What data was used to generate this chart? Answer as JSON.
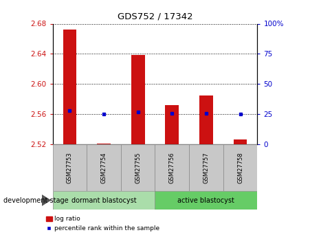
{
  "title": "GDS752 / 17342",
  "samples": [
    "GSM27753",
    "GSM27754",
    "GSM27755",
    "GSM27756",
    "GSM27757",
    "GSM27758"
  ],
  "log_ratio": [
    2.672,
    2.521,
    2.639,
    2.572,
    2.585,
    2.527
  ],
  "log_ratio_base": 2.52,
  "percentile_rank": [
    28,
    25,
    27,
    26,
    26,
    25
  ],
  "ylim_left": [
    2.52,
    2.68
  ],
  "ylim_right": [
    0,
    100
  ],
  "yticks_left": [
    2.52,
    2.56,
    2.6,
    2.64,
    2.68
  ],
  "yticks_right": [
    0,
    25,
    50,
    75,
    100
  ],
  "bar_color": "#cc1111",
  "square_color": "#0000cc",
  "grid_color": "#000000",
  "bg_color": "#ffffff",
  "plot_bg": "#ffffff",
  "dormant_label": "dormant blastocyst",
  "active_label": "active blastocyst",
  "stage_label": "development stage",
  "legend_log_ratio": "log ratio",
  "legend_percentile": "percentile rank within the sample",
  "left_label_color": "#cc1111",
  "right_label_color": "#0000cc",
  "tick_label_fontsize": 7.5,
  "bar_width": 0.4,
  "gray_box_color": "#c8c8c8",
  "dormant_color": "#aaddaa",
  "active_color": "#66cc66"
}
